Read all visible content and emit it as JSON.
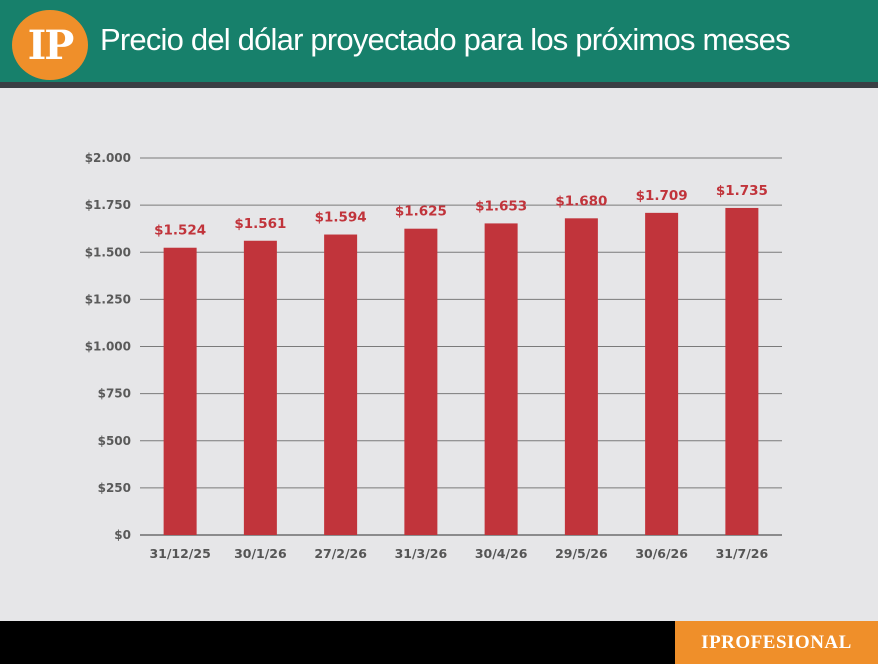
{
  "header": {
    "logo_text": "IP",
    "title": "Precio del dólar proyectado para los próximos meses"
  },
  "footer": {
    "brand": "IPROFESIONAL"
  },
  "colors": {
    "header_bg": "#17806b",
    "accent_orange": "#ef8f2a",
    "bar": "#c1343b",
    "value_label": "#c1343b",
    "background": "#e6e6e8"
  },
  "chart_data": {
    "type": "bar",
    "title": "Precio del dólar proyectado para los próximos meses",
    "xlabel": "",
    "ylabel": "",
    "categories": [
      "31/12/25",
      "30/1/26",
      "27/2/26",
      "31/3/26",
      "30/4/26",
      "29/5/26",
      "30/6/26",
      "31/7/26"
    ],
    "values": [
      1524,
      1561,
      1594,
      1625,
      1653,
      1680,
      1709,
      1735
    ],
    "value_labels": [
      "$1.524",
      "$1.561",
      "$1.594",
      "$1.625",
      "$1.653",
      "$1.680",
      "$1.709",
      "$1.735"
    ],
    "ylim": [
      0,
      2000
    ],
    "yticks": [
      0,
      250,
      500,
      750,
      1000,
      1250,
      1500,
      1750,
      2000
    ],
    "ytick_labels": [
      "$0",
      "$250",
      "$500",
      "$750",
      "$1.000",
      "$1.250",
      "$1.500",
      "$1.750",
      "$2.000"
    ],
    "grid": true,
    "legend": "none"
  }
}
